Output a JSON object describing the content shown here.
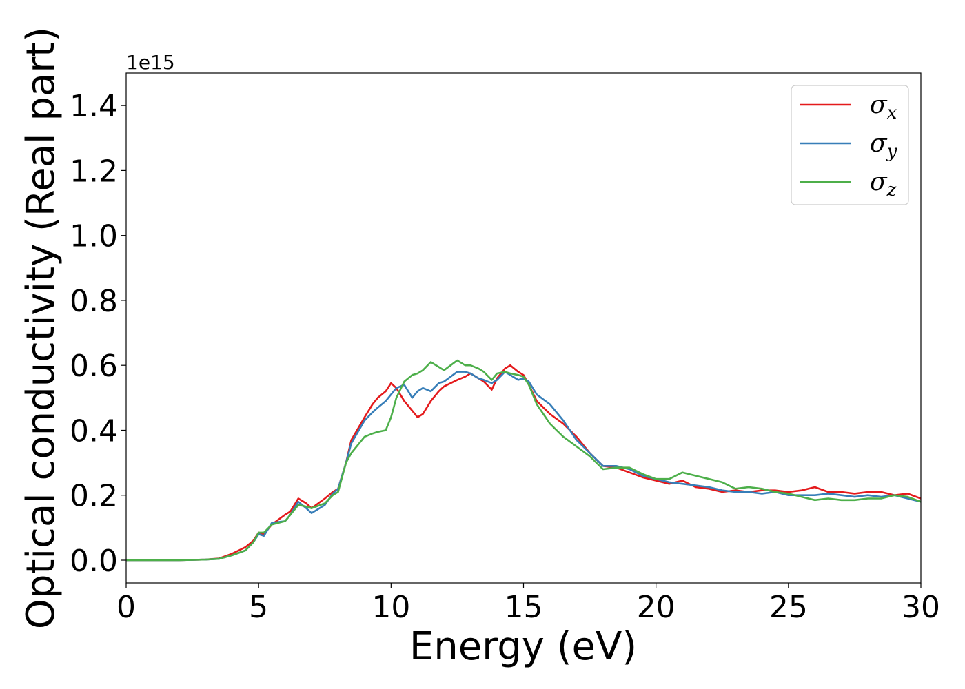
{
  "chart_data": {
    "type": "line",
    "xlabel": "Energy (eV)",
    "ylabel": "Optical conductivity (Real part)",
    "y_offset_label": "1e15",
    "xlim": [
      0,
      30
    ],
    "ylim": [
      -0.07,
      1.5
    ],
    "y_scale": "linear",
    "grid": false,
    "legend_position": "top-right",
    "x_ticks": [
      0,
      5,
      10,
      15,
      20,
      25,
      30
    ],
    "x_tick_labels": [
      "0",
      "5",
      "10",
      "15",
      "20",
      "25",
      "30"
    ],
    "y_ticks": [
      0.0,
      0.2,
      0.4,
      0.6,
      0.8,
      1.0,
      1.2,
      1.4
    ],
    "y_tick_labels": [
      "0.0",
      "0.2",
      "0.4",
      "0.6",
      "0.8",
      "1.0",
      "1.2",
      "1.4"
    ],
    "series": [
      {
        "name": "σx",
        "legend_base": "σ",
        "legend_sub": "x",
        "color": "#e41a1c",
        "x": [
          0,
          1,
          2,
          3,
          3.5,
          4,
          4.5,
          4.8,
          5,
          5.2,
          5.5,
          6,
          6.2,
          6.5,
          6.8,
          7,
          7.5,
          7.8,
          8,
          8.3,
          8.5,
          9,
          9.3,
          9.5,
          9.8,
          10,
          10.2,
          10.5,
          10.8,
          11,
          11.2,
          11.5,
          11.8,
          12,
          12.5,
          12.8,
          13,
          13.3,
          13.5,
          13.8,
          14,
          14.3,
          14.5,
          14.8,
          15,
          15.2,
          15.5,
          16,
          16.5,
          17,
          17.5,
          18,
          18.5,
          19,
          19.5,
          20,
          20.5,
          21,
          21.5,
          22,
          22.5,
          23,
          23.5,
          24,
          24.5,
          25,
          25.5,
          26,
          26.5,
          27,
          27.5,
          28,
          28.5,
          29,
          29.5,
          30
        ],
        "y": [
          0,
          0,
          0,
          0.002,
          0.005,
          0.02,
          0.04,
          0.06,
          0.085,
          0.08,
          0.11,
          0.14,
          0.15,
          0.19,
          0.175,
          0.16,
          0.19,
          0.21,
          0.22,
          0.3,
          0.37,
          0.44,
          0.48,
          0.5,
          0.52,
          0.545,
          0.53,
          0.49,
          0.46,
          0.44,
          0.45,
          0.49,
          0.52,
          0.535,
          0.555,
          0.565,
          0.575,
          0.56,
          0.55,
          0.525,
          0.56,
          0.59,
          0.6,
          0.58,
          0.57,
          0.54,
          0.49,
          0.45,
          0.42,
          0.38,
          0.33,
          0.29,
          0.285,
          0.27,
          0.255,
          0.245,
          0.235,
          0.245,
          0.225,
          0.22,
          0.21,
          0.215,
          0.21,
          0.215,
          0.215,
          0.21,
          0.215,
          0.225,
          0.21,
          0.21,
          0.205,
          0.21,
          0.21,
          0.2,
          0.205,
          0.19
        ]
      },
      {
        "name": "σy",
        "legend_base": "σ",
        "legend_sub": "y",
        "color": "#377eb8",
        "x": [
          0,
          1,
          2,
          3,
          3.5,
          4,
          4.5,
          4.8,
          5,
          5.2,
          5.5,
          6,
          6.2,
          6.5,
          6.8,
          7,
          7.5,
          7.8,
          8,
          8.3,
          8.5,
          9,
          9.3,
          9.5,
          9.8,
          10,
          10.2,
          10.5,
          10.8,
          11,
          11.2,
          11.5,
          11.8,
          12,
          12.5,
          12.8,
          13,
          13.3,
          13.5,
          13.8,
          14,
          14.3,
          14.5,
          14.8,
          15,
          15.2,
          15.5,
          16,
          16.5,
          17,
          17.5,
          18,
          18.5,
          19,
          19.5,
          20,
          20.5,
          21,
          21.5,
          22,
          22.5,
          23,
          23.5,
          24,
          24.5,
          25,
          25.5,
          26,
          26.5,
          27,
          27.5,
          28,
          28.5,
          29,
          29.5,
          30
        ],
        "y": [
          0,
          0,
          0,
          0.002,
          0.004,
          0.015,
          0.03,
          0.055,
          0.08,
          0.075,
          0.115,
          0.12,
          0.14,
          0.18,
          0.16,
          0.145,
          0.17,
          0.205,
          0.22,
          0.3,
          0.36,
          0.43,
          0.455,
          0.47,
          0.49,
          0.51,
          0.53,
          0.54,
          0.5,
          0.52,
          0.53,
          0.52,
          0.545,
          0.55,
          0.58,
          0.58,
          0.575,
          0.56,
          0.555,
          0.545,
          0.555,
          0.58,
          0.57,
          0.555,
          0.56,
          0.55,
          0.51,
          0.48,
          0.43,
          0.37,
          0.33,
          0.29,
          0.29,
          0.28,
          0.26,
          0.25,
          0.24,
          0.235,
          0.23,
          0.225,
          0.215,
          0.21,
          0.21,
          0.205,
          0.21,
          0.2,
          0.2,
          0.2,
          0.205,
          0.2,
          0.195,
          0.2,
          0.195,
          0.2,
          0.19,
          0.18
        ]
      },
      {
        "name": "σz",
        "legend_base": "σ",
        "legend_sub": "z",
        "color": "#4daf4a",
        "x": [
          0,
          1,
          2,
          3,
          3.5,
          4,
          4.5,
          4.8,
          5,
          5.2,
          5.5,
          6,
          6.2,
          6.5,
          6.8,
          7,
          7.5,
          7.8,
          8,
          8.3,
          8.5,
          9,
          9.3,
          9.5,
          9.8,
          10,
          10.2,
          10.5,
          10.8,
          11,
          11.2,
          11.5,
          11.8,
          12,
          12.5,
          12.8,
          13,
          13.3,
          13.5,
          13.8,
          14,
          14.3,
          14.5,
          14.8,
          15,
          15.2,
          15.5,
          16,
          16.5,
          17,
          17.5,
          18,
          18.5,
          19,
          19.5,
          20,
          20.5,
          21,
          21.5,
          22,
          22.5,
          23,
          23.5,
          24,
          24.5,
          25,
          25.5,
          26,
          26.5,
          27,
          27.5,
          28,
          28.5,
          29,
          29.5,
          30
        ],
        "y": [
          0,
          0,
          0,
          0.002,
          0.004,
          0.015,
          0.03,
          0.055,
          0.085,
          0.085,
          0.11,
          0.12,
          0.14,
          0.17,
          0.165,
          0.16,
          0.175,
          0.2,
          0.21,
          0.3,
          0.33,
          0.38,
          0.39,
          0.395,
          0.4,
          0.44,
          0.5,
          0.55,
          0.57,
          0.575,
          0.585,
          0.61,
          0.595,
          0.585,
          0.615,
          0.6,
          0.6,
          0.59,
          0.58,
          0.555,
          0.575,
          0.58,
          0.575,
          0.57,
          0.565,
          0.54,
          0.48,
          0.42,
          0.38,
          0.35,
          0.32,
          0.28,
          0.285,
          0.285,
          0.265,
          0.25,
          0.25,
          0.27,
          0.26,
          0.25,
          0.24,
          0.22,
          0.225,
          0.22,
          0.21,
          0.205,
          0.195,
          0.185,
          0.19,
          0.185,
          0.185,
          0.19,
          0.19,
          0.2,
          0.195,
          0.18
        ]
      }
    ]
  }
}
